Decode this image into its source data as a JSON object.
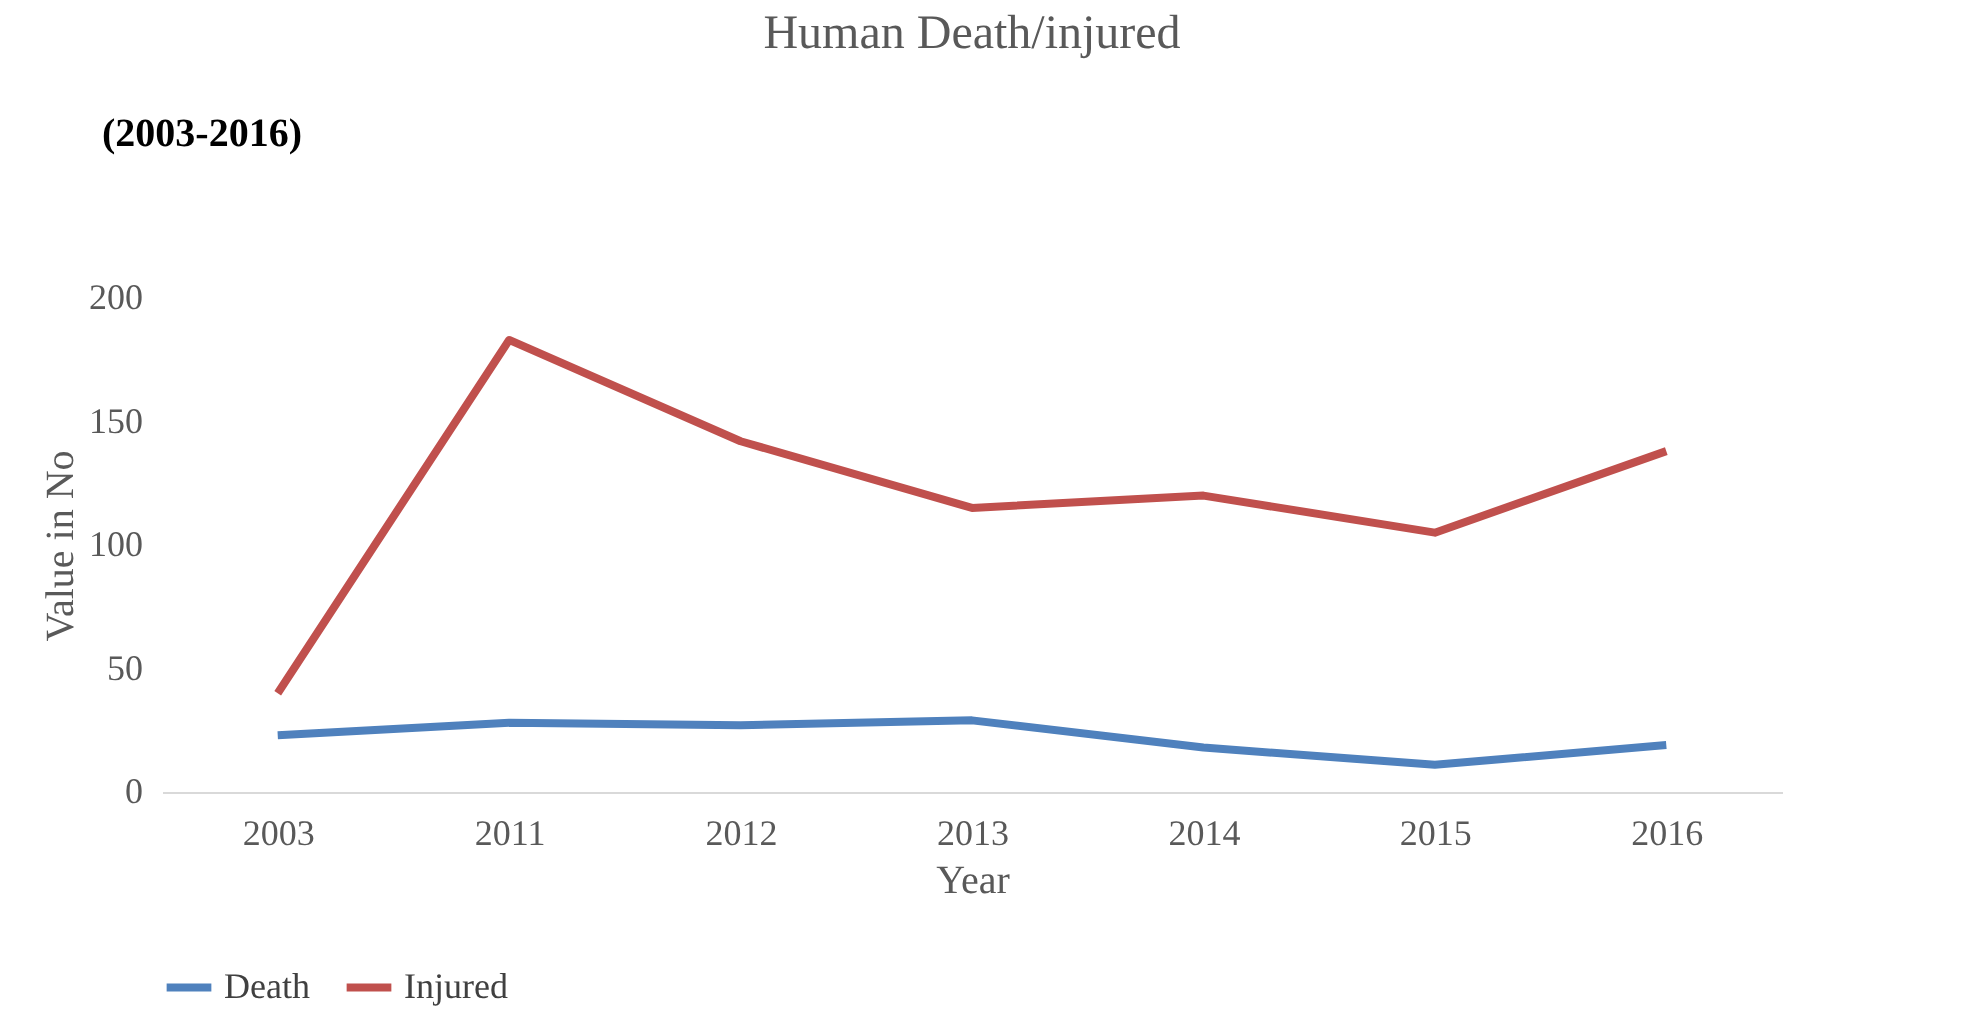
{
  "chart_data": {
    "type": "line",
    "title": "Human Death/injured",
    "xlabel": "Year",
    "ylabel": "Value in No",
    "annotations": [
      "(2003-2016)"
    ],
    "categories": [
      "2003",
      "2011",
      "2012",
      "2013",
      "2014",
      "2015",
      "2016"
    ],
    "series": [
      {
        "name": "Death",
        "color": "#4f81bd",
        "values": [
          23,
          28,
          27,
          29,
          18,
          11,
          19
        ]
      },
      {
        "name": "Injured",
        "color": "#c0504d",
        "values": [
          40,
          183,
          142,
          115,
          120,
          105,
          138
        ]
      }
    ],
    "ylim": [
      0,
      200
    ],
    "yticks": [
      0,
      50,
      100,
      150,
      200
    ],
    "grid": false,
    "legend": "bottom",
    "marker": "none",
    "line_style": "solid"
  }
}
